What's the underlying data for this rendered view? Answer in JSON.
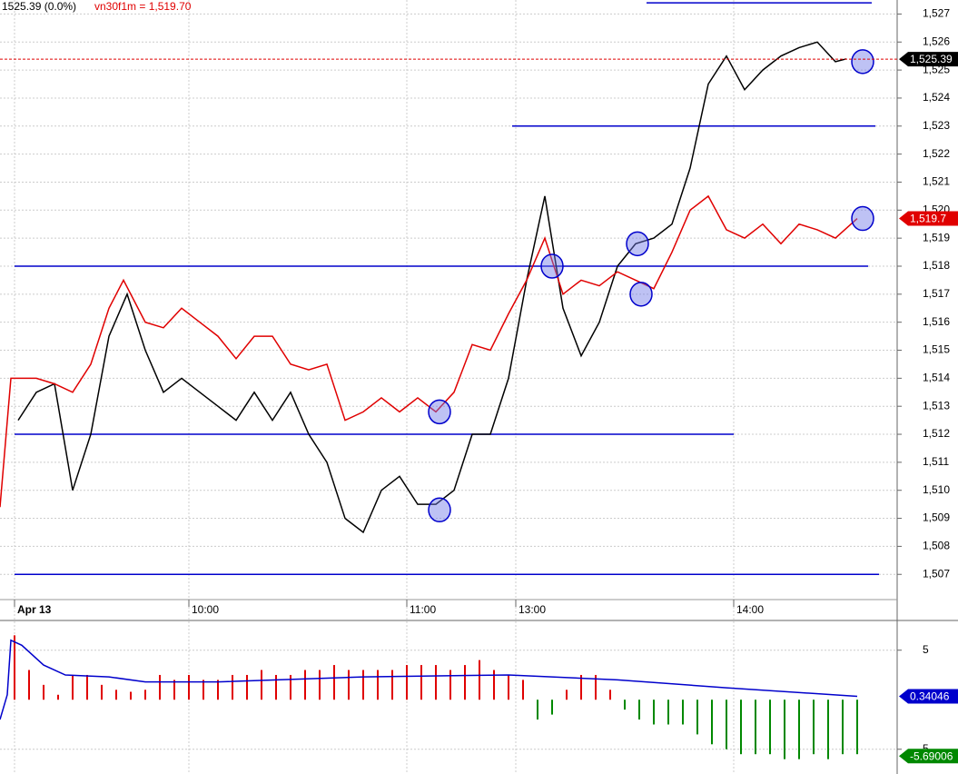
{
  "chart_data": [
    {
      "type": "line",
      "title": "1525.39 (0.0%)",
      "xlim": [
        0,
        247
      ],
      "ylim": [
        1506.1,
        1527.5
      ],
      "xticks": [
        {
          "value": 4,
          "label": "Apr 13"
        },
        {
          "value": 52,
          "label": "10:00"
        },
        {
          "value": 112,
          "label": "11:00"
        },
        {
          "value": 142,
          "label": "13:00"
        },
        {
          "value": 202,
          "label": "14:00"
        }
      ],
      "yticks": [
        {
          "value": 1507,
          "label": "1,507"
        },
        {
          "value": 1508,
          "label": "1,508"
        },
        {
          "value": 1509,
          "label": "1,509"
        },
        {
          "value": 1510,
          "label": "1,510"
        },
        {
          "value": 1511,
          "label": "1,511"
        },
        {
          "value": 1512,
          "label": "1,512"
        },
        {
          "value": 1513,
          "label": "1,513"
        },
        {
          "value": 1514,
          "label": "1,514"
        },
        {
          "value": 1515,
          "label": "1,515"
        },
        {
          "value": 1516,
          "label": "1,516"
        },
        {
          "value": 1517,
          "label": "1,517"
        },
        {
          "value": 1518,
          "label": "1,518"
        },
        {
          "value": 1519,
          "label": "1,519"
        },
        {
          "value": 1520,
          "label": "1,520"
        },
        {
          "value": 1521,
          "label": "1,521"
        },
        {
          "value": 1522,
          "label": "1,522"
        },
        {
          "value": 1523,
          "label": "1,523"
        },
        {
          "value": 1524,
          "label": "1,524"
        },
        {
          "value": 1525,
          "label": "1,525"
        },
        {
          "value": 1526,
          "label": "1,526"
        },
        {
          "value": 1527,
          "label": "1,527"
        }
      ],
      "grid": true,
      "series": [
        {
          "color": "#000000",
          "x": [
            5,
            10,
            15,
            20,
            25,
            30,
            35,
            40,
            45,
            50,
            55,
            60,
            65,
            70,
            75,
            80,
            85,
            90,
            95,
            100,
            105,
            110,
            115,
            120,
            125,
            130,
            135,
            140,
            145,
            150,
            155,
            160,
            165,
            170,
            175,
            180,
            185,
            190,
            195,
            200,
            205,
            210,
            215,
            220,
            225,
            230,
            233
          ],
          "values": [
            1512.5,
            1513.5,
            1513.8,
            1510,
            1512,
            1515.5,
            1517,
            1515,
            1513.5,
            1514,
            1513.5,
            1513,
            1512.5,
            1513.5,
            1512.5,
            1513.5,
            1512,
            1511,
            1509,
            1508.5,
            1510,
            1510.5,
            1509.5,
            1509.5,
            1510,
            1512,
            1512,
            1514,
            1517.5,
            1520.5,
            1516.5,
            1514.8,
            1516,
            1518,
            1518.8,
            1519,
            1519.5,
            1521.5,
            1524.5,
            1525.5,
            1524.3,
            1525,
            1525.5,
            1525.8,
            1526,
            1525.3,
            1525.4
          ]
        },
        {
          "name": "vn30f1m",
          "label": "vn30f1m = 1,519.70",
          "color": "#e00000",
          "x": [
            0,
            3,
            10,
            15,
            20,
            25,
            30,
            34,
            40,
            45,
            50,
            55,
            60,
            65,
            70,
            75,
            80,
            85,
            90,
            95,
            100,
            105,
            110,
            115,
            120,
            125,
            130,
            135,
            140,
            145,
            150,
            155,
            160,
            165,
            170,
            175,
            180,
            185,
            190,
            195,
            200,
            205,
            210,
            215,
            220,
            225,
            230,
            236
          ],
          "values": [
            1509.4,
            1514,
            1514,
            1513.8,
            1513.5,
            1514.5,
            1516.5,
            1517.5,
            1516,
            1515.8,
            1516.5,
            1516,
            1515.5,
            1514.7,
            1515.5,
            1515.5,
            1514.5,
            1514.3,
            1514.5,
            1512.5,
            1512.8,
            1513.3,
            1512.8,
            1513.3,
            1512.8,
            1513.5,
            1515.2,
            1515,
            1516.3,
            1517.5,
            1519,
            1517,
            1517.5,
            1517.3,
            1517.8,
            1517.5,
            1517.2,
            1518.5,
            1520,
            1520.5,
            1519.3,
            1519,
            1519.5,
            1518.8,
            1519.5,
            1519.3,
            1519,
            1519.7
          ]
        }
      ],
      "levels": [
        {
          "value": 1527.4,
          "x": [
            178,
            240
          ]
        },
        {
          "value": 1523,
          "x": [
            141,
            241
          ]
        },
        {
          "value": 1518,
          "x": [
            4,
            239
          ]
        },
        {
          "value": 1512,
          "x": [
            4,
            202
          ]
        },
        {
          "value": 1507,
          "x": [
            4,
            242
          ]
        }
      ],
      "markers": [
        {
          "x": 121,
          "y": 1512.8
        },
        {
          "x": 121,
          "y": 1509.3
        },
        {
          "x": 152,
          "y": 1518
        },
        {
          "x": 175.5,
          "y": 1518.8
        },
        {
          "x": 176.5,
          "y": 1517
        },
        {
          "x": 237.5,
          "y": 1525.3
        },
        {
          "x": 237.5,
          "y": 1519.7
        }
      ],
      "last_labels": [
        {
          "value": 1525.39,
          "label": "1,525.39",
          "color": "#000000"
        },
        {
          "value": 1519.7,
          "label": "1,519.7",
          "color": "#e00000"
        }
      ]
    },
    {
      "type": "bar",
      "xlim": [
        0,
        247
      ],
      "ylim": [
        -7.5,
        8
      ],
      "yticks": [
        5,
        {
          "value": -5,
          "label": "5"
        }
      ],
      "grid": true,
      "positive_color": "#e00000",
      "negative_color": "#008800",
      "x": [
        4,
        8,
        12,
        16,
        20,
        24,
        28,
        32,
        36,
        40,
        44,
        48,
        52,
        56,
        60,
        64,
        68,
        72,
        76,
        80,
        84,
        88,
        92,
        96,
        100,
        104,
        108,
        112,
        116,
        120,
        124,
        128,
        132,
        136,
        140,
        144,
        148,
        152,
        156,
        160,
        164,
        168,
        172,
        176,
        180,
        184,
        188,
        192,
        196,
        200,
        204,
        208,
        212,
        216,
        220,
        224,
        228,
        232,
        236
      ],
      "values": [
        6.5,
        3,
        1.5,
        0.5,
        2.5,
        2.5,
        1.5,
        1,
        0.8,
        1,
        2.5,
        2,
        2.5,
        2,
        2,
        2.5,
        2.5,
        3,
        2.5,
        2.5,
        3,
        3,
        3.5,
        3,
        3,
        3,
        3,
        3.5,
        3.5,
        3.5,
        3,
        3.5,
        4,
        3,
        2.5,
        2,
        -2,
        -1.5,
        1,
        2.5,
        2.5,
        1,
        -1,
        -2,
        -2.5,
        -2.5,
        -2.5,
        -3.5,
        -4.5,
        -5,
        -5.5,
        -5.5,
        -5.5,
        -6,
        -6,
        -5.5,
        -6,
        -5.5,
        -5.5
      ],
      "series": [
        {
          "color": "#0000cc",
          "x": [
            0,
            2,
            3,
            6,
            12,
            18,
            30,
            40,
            60,
            100,
            140,
            170,
            200,
            236
          ],
          "values": [
            -2,
            0.5,
            6,
            5.5,
            3.5,
            2.5,
            2.3,
            1.8,
            1.8,
            2.3,
            2.5,
            2,
            1.2,
            0.34
          ]
        }
      ],
      "last_labels": [
        {
          "value": 0.34046,
          "label": "0.34046",
          "color": "#0000cc"
        },
        {
          "value": -5.69006,
          "label": "-5.69006",
          "color": "#008800"
        }
      ]
    }
  ]
}
